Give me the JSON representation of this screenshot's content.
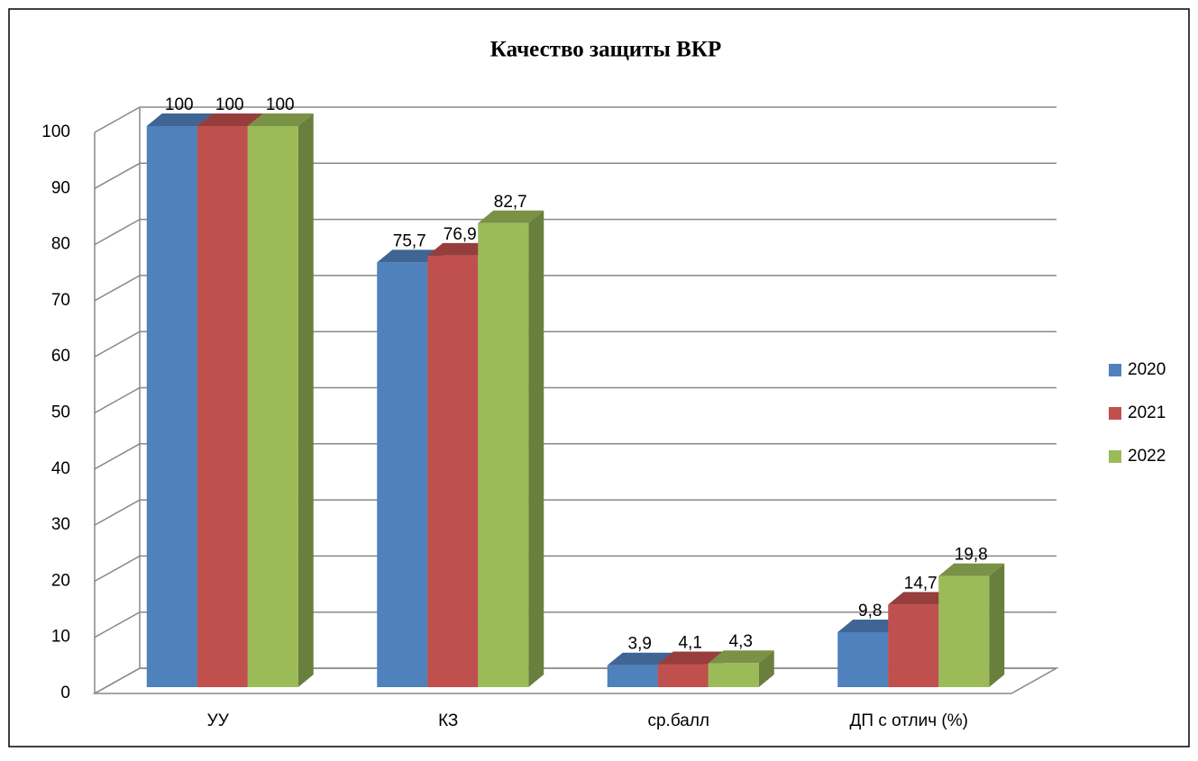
{
  "chart_data": {
    "type": "bar3d",
    "title": "Качество защиты ВКР",
    "categories": [
      "УУ",
      "КЗ",
      "ср.балл",
      "ДП с отлич (%)"
    ],
    "series": [
      {
        "name": "2020",
        "color": "#4f81bd",
        "values": [
          100,
          75.7,
          3.9,
          9.8
        ],
        "value_labels": [
          "100",
          "75,7",
          "3,9",
          "9,8"
        ]
      },
      {
        "name": "2021",
        "color": "#c0504d",
        "values": [
          100,
          76.9,
          4.1,
          14.7
        ],
        "value_labels": [
          "100",
          "76,9",
          "4,1",
          "14,7"
        ]
      },
      {
        "name": "2022",
        "color": "#9bbb59",
        "values": [
          100,
          82.7,
          4.3,
          19.8
        ],
        "value_labels": [
          "100",
          "82,7",
          "4,3",
          "19,8"
        ]
      }
    ],
    "ylim": [
      0,
      100
    ],
    "yticks": [
      0,
      10,
      20,
      30,
      40,
      50,
      60,
      70,
      80,
      90,
      100
    ],
    "grid": true,
    "legend": "right"
  }
}
